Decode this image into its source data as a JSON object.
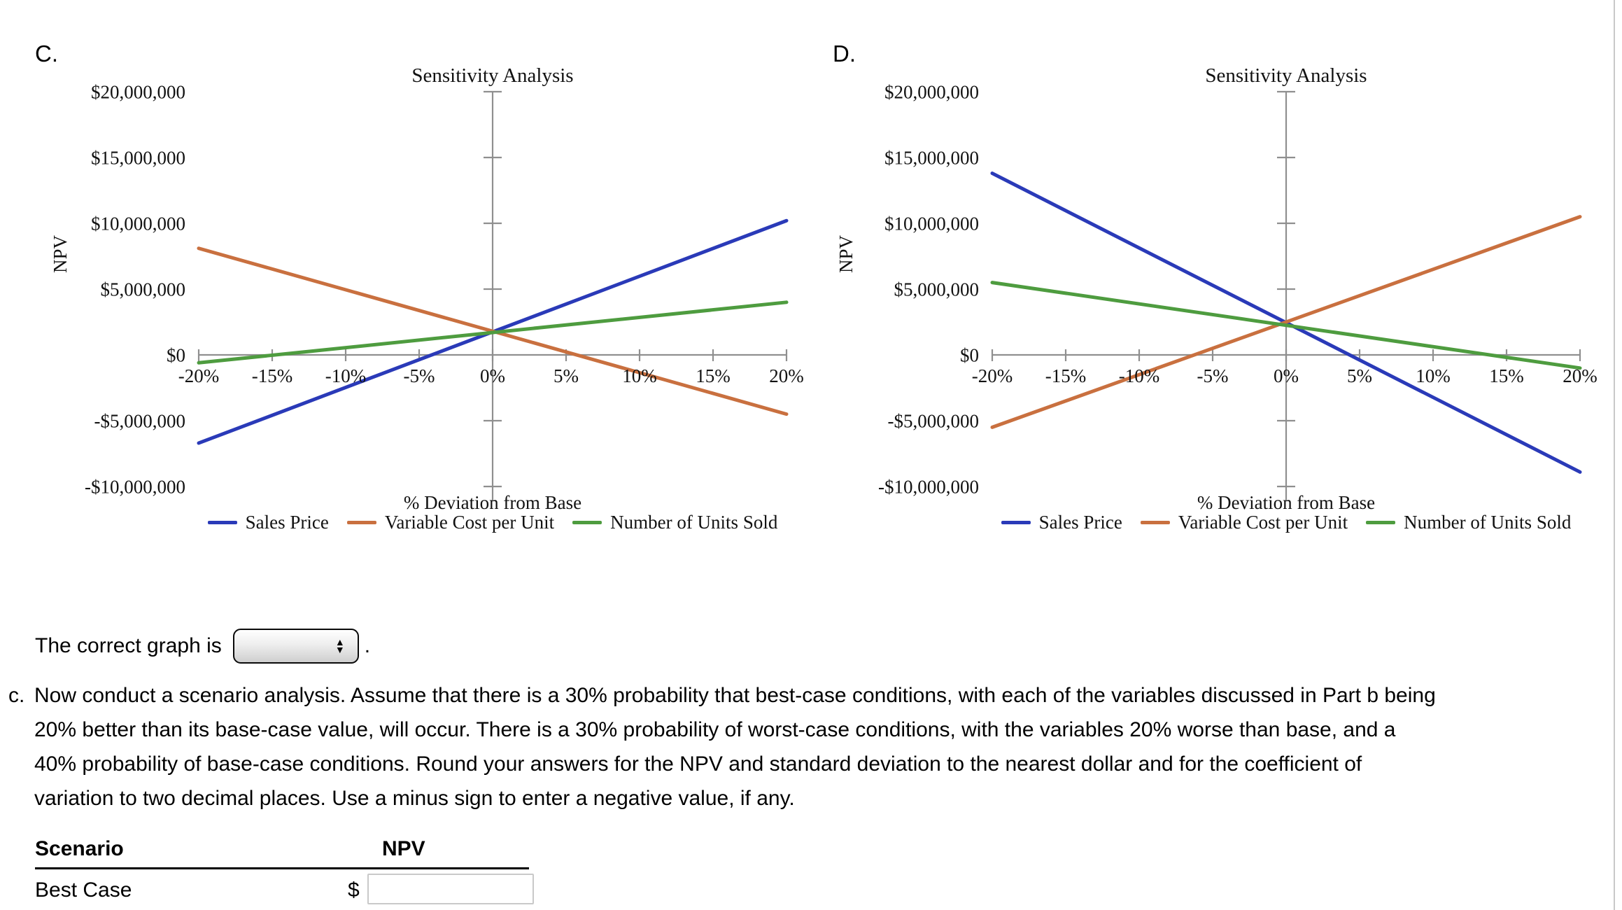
{
  "colors": {
    "axis": "#8f8f8f",
    "edge_line": "#c9c9c9",
    "input_border": "#c9c9c9",
    "series_blue": "#2a3ab8",
    "series_orange": "#c9703f",
    "series_green": "#4e9c3f"
  },
  "correct_graph": {
    "prompt": "The correct graph is",
    "suffix": ".",
    "selected_value": ""
  },
  "question": {
    "item_label": "c.",
    "lines": [
      "Now conduct a scenario analysis. Assume that there is a 30% probability that best-case conditions, with each of the variables discussed in Part b being",
      "20% better than its base-case value, will occur. There is a 30% probability of worst-case conditions, with the variables 20% worse than base, and a",
      "40% probability of base-case conditions. Round your answers for the NPV and standard deviation to the nearest dollar and for the coefficient of",
      "variation to two decimal places. Use a minus sign to enter a negative value, if any."
    ]
  },
  "table": {
    "header_scenario": "Scenario",
    "header_npv": "NPV",
    "row_label": "Best Case",
    "currency_symbol": "$",
    "npv_input_value": ""
  },
  "chart_data": [
    {
      "id": "C",
      "corner_label": "C.",
      "type": "line",
      "title": "Sensitivity Analysis",
      "xlabel": "% Deviation from Base",
      "ylabel": "NPV",
      "x_range": [
        -20,
        20
      ],
      "ylim": [
        -10000000,
        20000000
      ],
      "x_ticks": [
        "-20%",
        "-15%",
        "-10%",
        "-5%",
        "0%",
        "5%",
        "10%",
        "15%",
        "20%"
      ],
      "x_tick_values": [
        -20,
        -15,
        -10,
        -5,
        0,
        5,
        10,
        15,
        20
      ],
      "y_ticks": [
        "$20,000,000",
        "$15,000,000",
        "$10,000,000",
        "$5,000,000",
        "$0",
        "-$5,000,000",
        "-$10,000,000"
      ],
      "y_tick_values": [
        20000000,
        15000000,
        10000000,
        5000000,
        0,
        -5000000,
        -10000000
      ],
      "grid": false,
      "legend_position": "bottom",
      "series": [
        {
          "name": "Sales Price",
          "color": "#2a3ab8",
          "points": [
            [
              -20,
              -6700000
            ],
            [
              20,
              10200000
            ]
          ]
        },
        {
          "name": "Variable Cost per Unit",
          "color": "#c9703f",
          "points": [
            [
              -20,
              8100000
            ],
            [
              20,
              -4500000
            ]
          ]
        },
        {
          "name": "Number of Units Sold",
          "color": "#4e9c3f",
          "points": [
            [
              -20,
              -600000
            ],
            [
              20,
              4000000
            ]
          ]
        }
      ]
    },
    {
      "id": "D",
      "corner_label": "D.",
      "type": "line",
      "title": "Sensitivity Analysis",
      "xlabel": "% Deviation from Base",
      "ylabel": "NPV",
      "x_range": [
        -20,
        20
      ],
      "ylim": [
        -10000000,
        20000000
      ],
      "x_ticks": [
        "-20%",
        "-15%",
        "-10%",
        "-5%",
        "0%",
        "5%",
        "10%",
        "15%",
        "20%"
      ],
      "x_tick_values": [
        -20,
        -15,
        -10,
        -5,
        0,
        5,
        10,
        15,
        20
      ],
      "y_ticks": [
        "$20,000,000",
        "$15,000,000",
        "$10,000,000",
        "$5,000,000",
        "$0",
        "-$5,000,000",
        "-$10,000,000"
      ],
      "y_tick_values": [
        20000000,
        15000000,
        10000000,
        5000000,
        0,
        -5000000,
        -10000000
      ],
      "grid": false,
      "legend_position": "bottom",
      "series": [
        {
          "name": "Sales Price",
          "color": "#2a3ab8",
          "points": [
            [
              -20,
              13800000
            ],
            [
              20,
              -8900000
            ]
          ]
        },
        {
          "name": "Variable Cost per Unit",
          "color": "#c9703f",
          "points": [
            [
              -20,
              -5500000
            ],
            [
              20,
              10500000
            ]
          ]
        },
        {
          "name": "Number of Units Sold",
          "color": "#4e9c3f",
          "points": [
            [
              -20,
              5500000
            ],
            [
              20,
              -1000000
            ]
          ]
        }
      ]
    }
  ]
}
